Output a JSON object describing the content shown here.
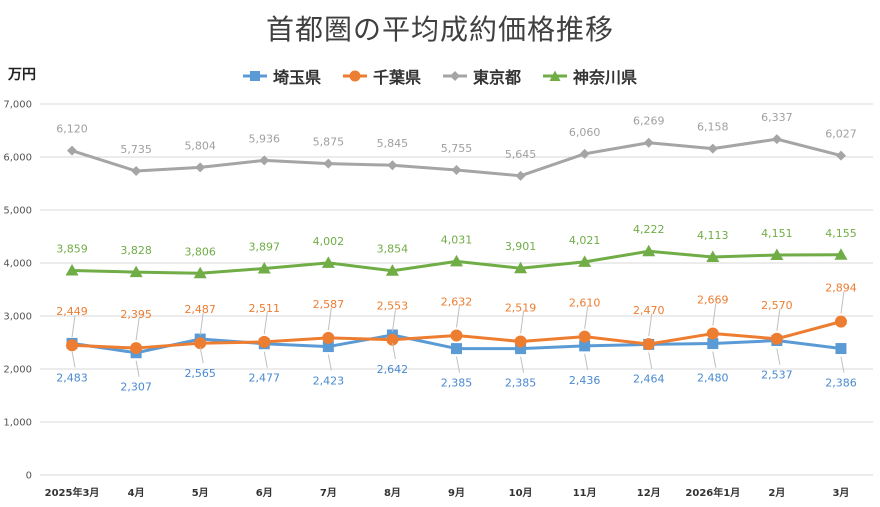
{
  "chart_data": {
    "type": "line",
    "title": "首都圏の平均成約価格推移",
    "ylabel": "万円",
    "xlabel": "",
    "ylim": [
      0,
      7000
    ],
    "yticks": [
      "0",
      "1,000",
      "2,000",
      "3,000",
      "4,000",
      "5,000",
      "6,000",
      "7,000"
    ],
    "categories": [
      "2025年3月",
      "4月",
      "5月",
      "6月",
      "7月",
      "8月",
      "9月",
      "10月",
      "11月",
      "12月",
      "2026年1月",
      "2月",
      "3月"
    ],
    "series": [
      {
        "name": "埼玉県",
        "color": "#5b9bd5",
        "marker": "square",
        "values": [
          2483,
          2307,
          2565,
          2477,
          2423,
          2642,
          2385,
          2385,
          2436,
          2464,
          2480,
          2537,
          2386
        ],
        "labels": [
          "2,483",
          "2,307",
          "2,565",
          "2,477",
          "2,423",
          "2,642",
          "2,385",
          "2,385",
          "2,436",
          "2,464",
          "2,480",
          "2,537",
          "2,386"
        ]
      },
      {
        "name": "千葉県",
        "color": "#ed7d31",
        "marker": "circle",
        "values": [
          2449,
          2395,
          2487,
          2511,
          2587,
          2553,
          2632,
          2519,
          2610,
          2470,
          2669,
          2570,
          2894
        ],
        "labels": [
          "2,449",
          "2,395",
          "2,487",
          "2,511",
          "2,587",
          "2,553",
          "2,632",
          "2,519",
          "2,610",
          "2,470",
          "2,669",
          "2,570",
          "2,894"
        ]
      },
      {
        "name": "東京都",
        "color": "#a5a5a5",
        "marker": "diamond",
        "values": [
          6120,
          5735,
          5804,
          5936,
          5875,
          5845,
          5755,
          5645,
          6060,
          6269,
          6158,
          6337,
          6027
        ],
        "labels": [
          "6,120",
          "5,735",
          "5,804",
          "5,936",
          "5,875",
          "5,845",
          "5,755",
          "5,645",
          "6,060",
          "6,269",
          "6,158",
          "6,337",
          "6,027"
        ]
      },
      {
        "name": "神奈川県",
        "color": "#70ad47",
        "marker": "triangle",
        "values": [
          3859,
          3828,
          3806,
          3897,
          4002,
          3854,
          4031,
          3901,
          4021,
          4222,
          4113,
          4151,
          4155
        ],
        "labels": [
          "3,859",
          "3,828",
          "3,806",
          "3,897",
          "4,002",
          "3,854",
          "4,031",
          "3,901",
          "4,021",
          "4,222",
          "4,113",
          "4,151",
          "4,155"
        ]
      }
    ]
  }
}
